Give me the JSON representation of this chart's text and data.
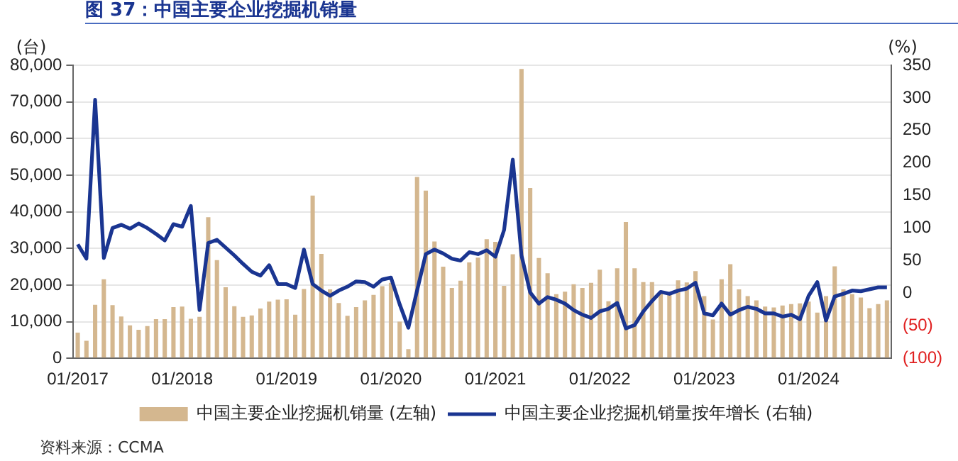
{
  "chart_data": {
    "type": "bar",
    "title": "图 37：中国主要企业挖掘机销量",
    "ylabel": "(台)",
    "y2label": "(%)",
    "categories": [
      "01/2017",
      null,
      null,
      null,
      null,
      null,
      null,
      null,
      null,
      null,
      null,
      null,
      "01/2018",
      null,
      null,
      null,
      null,
      null,
      null,
      null,
      null,
      null,
      null,
      null,
      "01/2019",
      null,
      null,
      null,
      null,
      null,
      null,
      null,
      null,
      null,
      null,
      null,
      "01/2020",
      null,
      null,
      null,
      null,
      null,
      null,
      null,
      null,
      null,
      null,
      null,
      "01/2021",
      null,
      null,
      null,
      null,
      null,
      null,
      null,
      null,
      null,
      null,
      null,
      "01/2022",
      null,
      null,
      null,
      null,
      null,
      null,
      null,
      null,
      null,
      null,
      null,
      "01/2023",
      null,
      null,
      null,
      null,
      null,
      null,
      null,
      null,
      null,
      null,
      null,
      "01/2024",
      null,
      null,
      null,
      null,
      null,
      null,
      null,
      null,
      null
    ],
    "series": [
      {
        "name": "中国主要企业挖掘机销量 (左轴)",
        "color": "#d4b78f",
        "values": [
          7000,
          4800,
          14600,
          21600,
          14500,
          11400,
          9000,
          7800,
          8800,
          10700,
          10700,
          14000,
          14100,
          10800,
          11300,
          38500,
          26800,
          19400,
          14200,
          11300,
          11700,
          13600,
          15500,
          16000,
          16100,
          11900,
          18900,
          44400,
          28500,
          18800,
          15100,
          11600,
          14000,
          15800,
          17300,
          19700,
          20600,
          10000,
          2500,
          49500,
          45800,
          31900,
          25000,
          19200,
          21200,
          26200,
          27500,
          32500,
          31800,
          19800,
          28400,
          79000,
          46500,
          27400,
          23200,
          17500,
          18200,
          20200,
          19200,
          20600,
          24200,
          15600,
          24600,
          37200,
          24600,
          20800,
          20800,
          17900,
          17300,
          21300,
          20700,
          23800,
          17000,
          10600,
          21600,
          25700,
          18800,
          17000,
          15800,
          14100,
          13900,
          14400,
          14800,
          15000,
          15500,
          12500,
          17000,
          25100,
          18800,
          17500,
          16600,
          13700,
          14800,
          15800
        ]
      },
      {
        "name": "中国主要企业挖掘机销量按年增长 (右轴)",
        "type": "line",
        "axis": "y2",
        "color": "#1a3591",
        "values": [
          75,
          53,
          297,
          54,
          100,
          105,
          99,
          107,
          100,
          91,
          81,
          106,
          102,
          134,
          -26,
          77,
          82,
          70,
          58,
          45,
          33,
          27,
          43,
          14,
          14,
          8,
          67,
          14,
          4,
          -4,
          4,
          10,
          18,
          17,
          10,
          21,
          24,
          -17,
          -53,
          4,
          60,
          67,
          61,
          53,
          50,
          63,
          60,
          66,
          56,
          97,
          205,
          58,
          1,
          -16,
          -6,
          -10,
          -16,
          -26,
          -33,
          -38,
          -28,
          -24,
          -15,
          -54,
          -49,
          -28,
          -12,
          2,
          -1,
          4,
          7,
          16,
          -31,
          -34,
          -16,
          -33,
          -26,
          -21,
          -24,
          -31,
          -31,
          -36,
          -33,
          -40,
          -4,
          17,
          -42,
          -5,
          -1,
          4,
          3,
          6,
          9,
          9
        ]
      }
    ],
    "ylim": [
      0,
      80000
    ],
    "yticks": [
      0,
      {
        "value": 10000,
        "label": "10,000"
      },
      {
        "value": 20000,
        "label": "20,000"
      },
      {
        "value": 30000,
        "label": "30,000"
      },
      {
        "value": 40000,
        "label": "40,000"
      },
      {
        "value": 50000,
        "label": "50,000"
      },
      {
        "value": 60000,
        "label": "60,000"
      },
      {
        "value": 70000,
        "label": "70,000"
      },
      {
        "value": 80000,
        "label": "80,000"
      }
    ],
    "y2lim": [
      -100,
      350
    ],
    "y2ticks": [
      {
        "value": -100,
        "label": "(100)"
      },
      {
        "value": -50,
        "label": "(50)"
      },
      0,
      50,
      100,
      150,
      200,
      250,
      300,
      350
    ],
    "grid": "y",
    "legend": "bottom",
    "marker": "none",
    "annotations": [
      "资料来源：CCMA"
    ]
  }
}
